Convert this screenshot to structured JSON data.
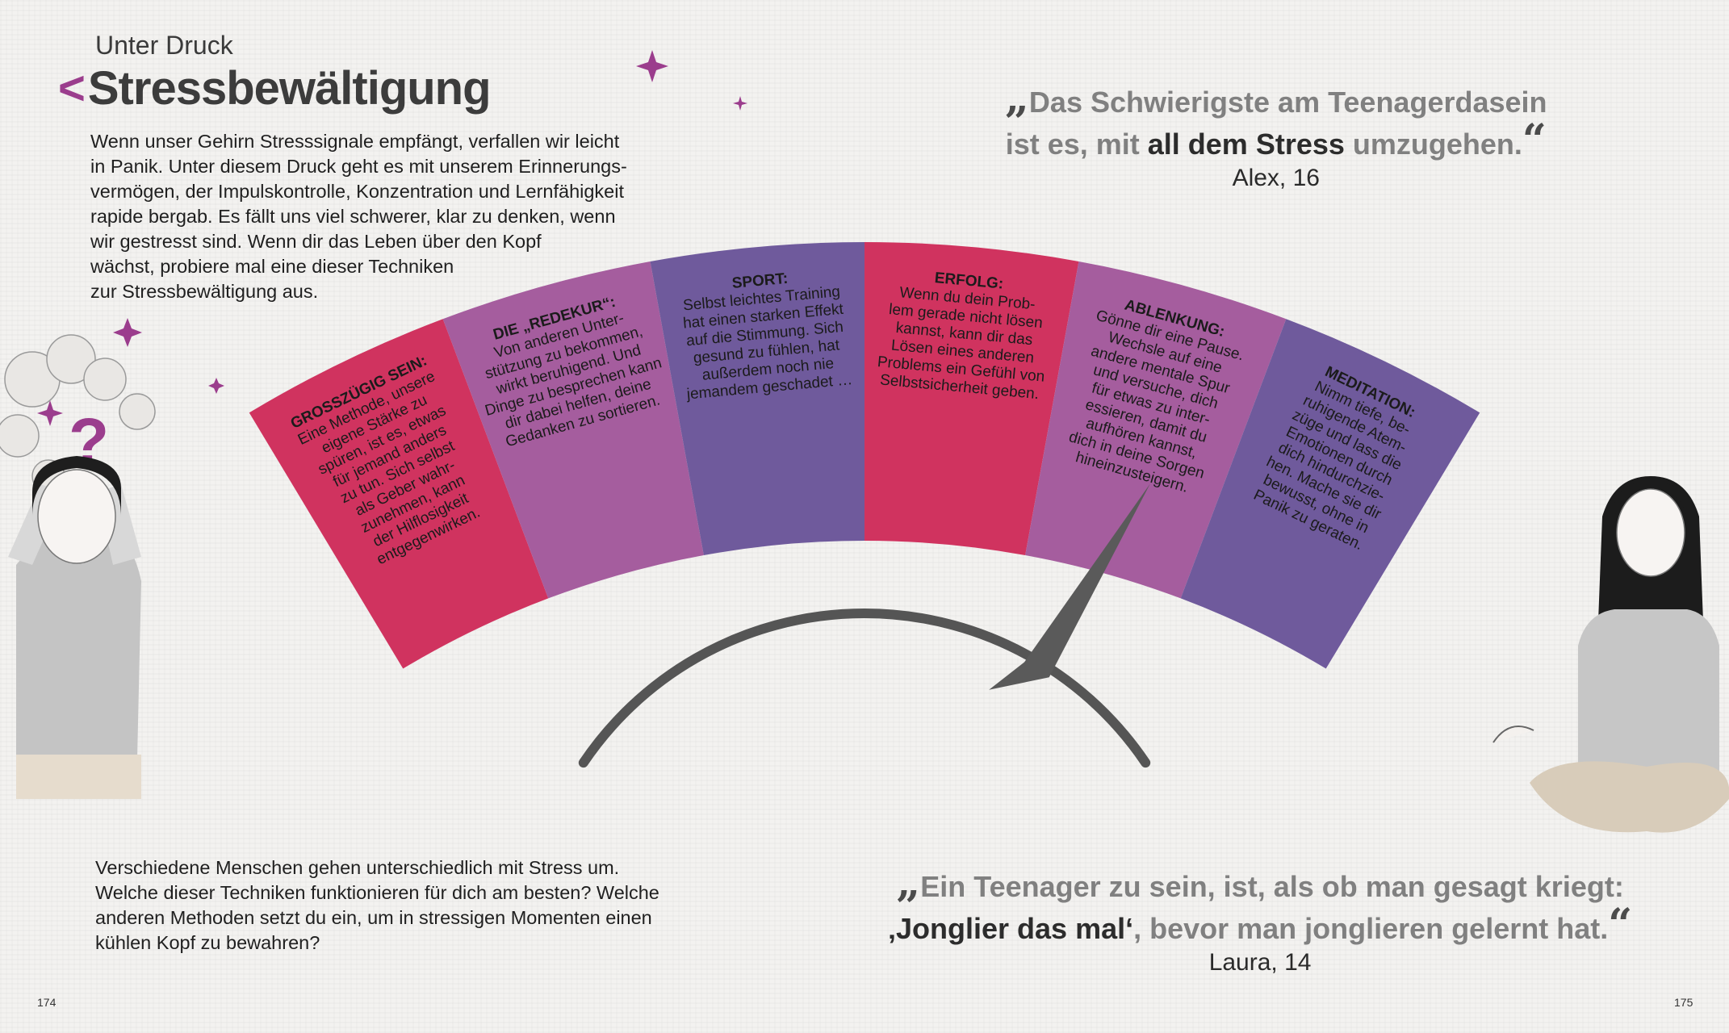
{
  "header": {
    "eyebrow": "Unter Druck",
    "title": "Stressbewältigung"
  },
  "intro_text": "Wenn unser Gehirn Stresssignale empfängt, verfallen wir leicht\nin Panik. Unter diesem Druck geht es mit unserem Erinnerungs-\nvermögen, der Impulskontrolle, Konzentration und Lernfähigkeit\nrapide bergab. Es fällt uns viel schwerer, klar zu denken, wenn\nwir gestresst sind. Wenn dir das Leben über den Kopf\nwächst, probiere mal eine dieser Techniken\nzur Stressbewältigung aus.",
  "question_text": "Verschiedene Menschen gehen unterschiedlich mit Stress um.\nWelche dieser Techniken funktionieren für dich am besten? Welche\nanderen Methoden setzt du ein, um in stressigen Momenten einen\nkühlen Kopf zu bewahren?",
  "quote_top": {
    "open_mark": "„",
    "line1": "Das Schwierigste am Teenagerdasein",
    "line2_pre": "ist es, mit ",
    "line2_bold": "all dem Stress",
    "line2_post": " umzugehen.",
    "close_mark": "“",
    "author": "Alex, 16"
  },
  "quote_bottom": {
    "open_mark": "„",
    "line1": "Ein Teenager zu sein, ist, als ob man gesagt kriegt:",
    "line2_bold": "‚Jonglier das mal‘",
    "line2_post": ", bevor man jonglieren gelernt hat.",
    "close_mark": "“",
    "author": "Laura, 14"
  },
  "segments": [
    {
      "color": "#d0335f",
      "heading": "GROSSZÜGIG SEIN:",
      "lines": [
        "Eine Methode, unsere",
        "eigene Stärke zu",
        "spüren, ist es, etwas",
        "für jemand anders",
        "zu tun. Sich selbst",
        "als Geber wahr-",
        "zunehmen, kann",
        "der Hilflosigkeit",
        "entgegenwirken."
      ]
    },
    {
      "color": "#a55d9e",
      "heading": "DIE „REDEKUR“:",
      "lines": [
        "Von anderen Unter-",
        "stützung zu bekommen,",
        "wirkt beruhigend. Und",
        "Dinge zu besprechen kann",
        "dir dabei helfen, deine",
        "Gedanken zu sortieren."
      ]
    },
    {
      "color": "#6f5a9c",
      "heading": "SPORT:",
      "lines": [
        "Selbst leichtes Training",
        "hat einen starken Effekt",
        "auf die Stimmung. Sich",
        "gesund zu fühlen, hat",
        "außerdem noch nie",
        "jemandem geschadet …"
      ]
    },
    {
      "color": "#d0335f",
      "heading": "ERFOLG:",
      "lines": [
        "Wenn du dein Prob-",
        "lem gerade nicht lösen",
        "kannst, kann dir das",
        "Lösen eines anderen",
        "Problems ein Gefühl von",
        "Selbstsicherheit geben."
      ]
    },
    {
      "color": "#a55d9e",
      "heading": "ABLENKUNG:",
      "lines": [
        "Gönne dir eine Pause.",
        "Wechsle auf eine",
        "andere mentale Spur",
        "und versuche, dich",
        "für etwas zu inter-",
        "essieren, damit du",
        "aufhören kannst,",
        "dich in deine Sorgen",
        "hineinzusteigern."
      ]
    },
    {
      "color": "#6f5a9c",
      "heading": "MEDITATION:",
      "lines": [
        "Nimm tiefe, be-",
        "ruhigende Atem-",
        "züge und lass die",
        "Emotionen durch",
        "dich hindurchzie-",
        "hen. Mache sie dir",
        "bewusst, ohne in",
        "Panik zu geraten."
      ]
    }
  ],
  "gauge": {
    "needle_level": 0.78,
    "arc_color": "#555555"
  },
  "illustrations": {
    "stressed_girl": "stressed-girl-illustration",
    "meditating_girl": "meditating-girl-illustration"
  },
  "page_numbers": {
    "left": "174",
    "right": "175"
  },
  "colors": {
    "accent_purple": "#9b3d8d",
    "crimson": "#d0335f",
    "mauve": "#a55d9e",
    "violet": "#6f5a9c"
  }
}
